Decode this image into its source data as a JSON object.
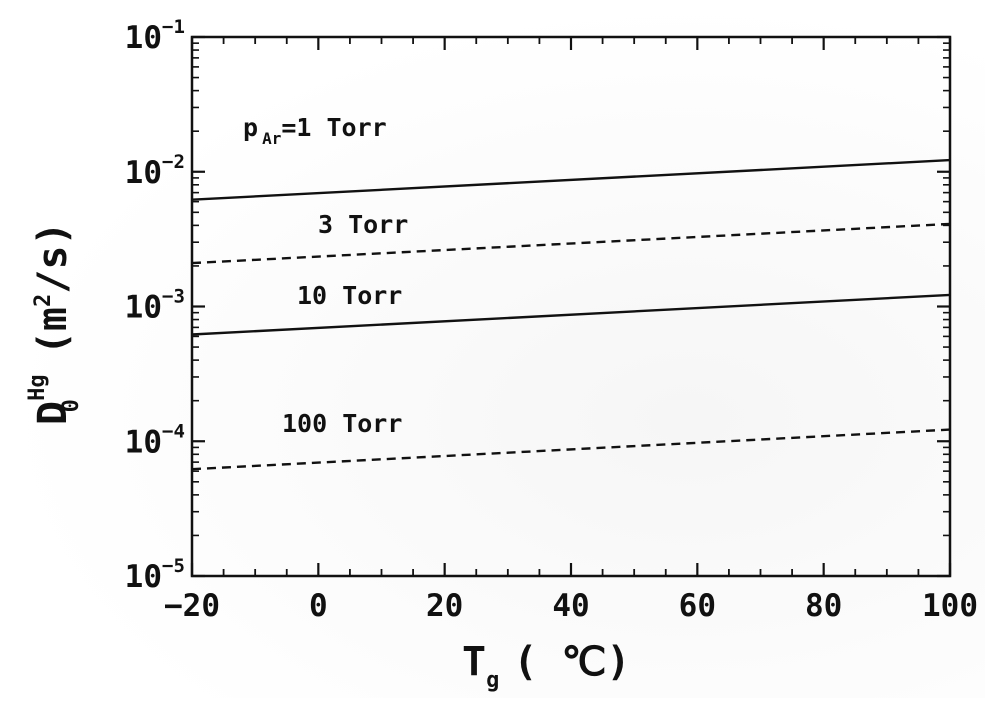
{
  "chart_data": {
    "type": "line",
    "title": "",
    "x_axis": {
      "label_main": "T",
      "label_sub": "g",
      "label_unit": "( ℃)",
      "range": [
        -20,
        100
      ],
      "ticks": [
        -20,
        0,
        20,
        40,
        60,
        80,
        100
      ],
      "tick_labels": [
        "−20",
        "0",
        "20",
        "40",
        "60",
        "80",
        "100"
      ],
      "scale": "linear"
    },
    "y_axis": {
      "label_main": "D",
      "label_sup": "Hg",
      "label_sub": "0",
      "label_unit": "(m",
      "label_unit_sup": "2",
      "label_unit_end": "/s)",
      "range": [
        1e-05,
        0.1
      ],
      "scale": "log",
      "ticks": [
        1e-05,
        0.0001,
        0.001,
        0.01,
        0.1
      ],
      "tick_base": [
        "10",
        "10",
        "10",
        "10",
        "10"
      ],
      "tick_exponents": [
        "−5",
        "−4",
        "−3",
        "−2",
        "−1"
      ]
    },
    "grid": false,
    "legend": "none",
    "series": [
      {
        "name": "p Ar=1 Torr",
        "label_text": "p",
        "label_sub": "Ar",
        "label_rest": "=1 Torr",
        "style": "solid",
        "x": [
          -20,
          100
        ],
        "values": [
          0.0062,
          0.0122
        ]
      },
      {
        "name": "3 Torr",
        "label_text": "3 Torr",
        "style": "dashed",
        "x": [
          -20,
          100
        ],
        "values": [
          0.0021,
          0.0041
        ]
      },
      {
        "name": "10 Torr",
        "label_text": "10 Torr",
        "style": "solid",
        "x": [
          -20,
          100
        ],
        "values": [
          0.00062,
          0.00122
        ]
      },
      {
        "name": "100 Torr",
        "label_text": "100 Torr",
        "style": "dashed",
        "x": [
          -20,
          100
        ],
        "values": [
          6.2e-05,
          0.000122
        ]
      }
    ],
    "colors": {
      "line": "#111111",
      "axis": "#111111",
      "background": "#ffffff"
    }
  }
}
